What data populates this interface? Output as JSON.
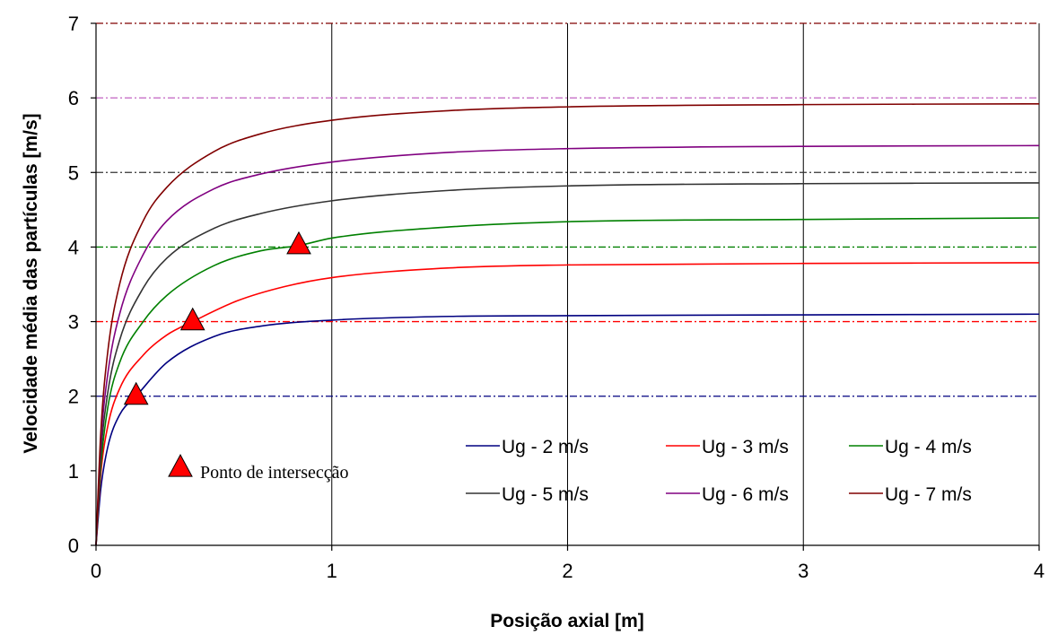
{
  "chart_data": {
    "type": "line",
    "xlabel": "Posição axial [m]",
    "ylabel": "Velocidade média das partículas [m/s]",
    "xlim": [
      0,
      4
    ],
    "ylim": [
      0,
      7
    ],
    "xticks": [
      0,
      1,
      2,
      3,
      4
    ],
    "yticks": [
      0,
      1,
      2,
      3,
      4,
      5,
      6,
      7
    ],
    "grid": "vertical lines at x ticks",
    "series": [
      {
        "name": "Ug - 2 m/s",
        "color": "#000080",
        "x": [
          0,
          0.02,
          0.05,
          0.1,
          0.17,
          0.3,
          0.5,
          0.7,
          1.0,
          1.5,
          2.0,
          3.0,
          4.0
        ],
        "y": [
          0,
          0.75,
          1.32,
          1.75,
          2.0,
          2.45,
          2.8,
          2.94,
          3.02,
          3.07,
          3.08,
          3.09,
          3.1
        ]
      },
      {
        "name": "Ug - 3 m/s",
        "color": "#ff0000",
        "x": [
          0,
          0.02,
          0.05,
          0.1,
          0.2,
          0.3,
          0.41,
          0.6,
          0.8,
          1.0,
          1.5,
          2.0,
          3.0,
          4.0
        ],
        "y": [
          0,
          0.95,
          1.6,
          2.1,
          2.55,
          2.82,
          3.0,
          3.28,
          3.47,
          3.59,
          3.72,
          3.76,
          3.78,
          3.79
        ]
      },
      {
        "name": "Ug - 4 m/s",
        "color": "#008000",
        "x": [
          0,
          0.02,
          0.05,
          0.1,
          0.2,
          0.3,
          0.5,
          0.7,
          0.86,
          1.0,
          1.5,
          2.0,
          3.0,
          4.0
        ],
        "y": [
          0,
          1.05,
          1.85,
          2.45,
          3.0,
          3.35,
          3.75,
          3.95,
          4.02,
          4.12,
          4.27,
          4.34,
          4.37,
          4.39
        ]
      },
      {
        "name": "Ug - 5 m/s",
        "color": "#333333",
        "x": [
          0,
          0.02,
          0.05,
          0.1,
          0.2,
          0.3,
          0.5,
          0.7,
          1.0,
          1.5,
          2.0,
          3.0,
          4.0
        ],
        "y": [
          0,
          1.2,
          2.05,
          2.75,
          3.45,
          3.85,
          4.25,
          4.45,
          4.62,
          4.76,
          4.82,
          4.85,
          4.86
        ]
      },
      {
        "name": "Ug - 6 m/s",
        "color": "#800080",
        "x": [
          0,
          0.02,
          0.05,
          0.1,
          0.2,
          0.3,
          0.5,
          0.7,
          1.0,
          1.5,
          2.0,
          3.0,
          4.0
        ],
        "y": [
          0,
          1.35,
          2.3,
          3.1,
          3.9,
          4.35,
          4.78,
          4.98,
          5.14,
          5.27,
          5.32,
          5.35,
          5.36
        ]
      },
      {
        "name": "Ug - 7 m/s",
        "color": "#800000",
        "x": [
          0,
          0.02,
          0.05,
          0.1,
          0.2,
          0.3,
          0.5,
          0.7,
          1.0,
          1.5,
          2.0,
          3.0,
          4.0
        ],
        "y": [
          0,
          1.5,
          2.6,
          3.5,
          4.35,
          4.8,
          5.28,
          5.52,
          5.7,
          5.83,
          5.88,
          5.91,
          5.92
        ]
      }
    ],
    "reference_lines": [
      {
        "y": 2,
        "color": "#000080",
        "style": "dash-dot"
      },
      {
        "y": 3,
        "color": "#ff0000",
        "style": "dash-dot"
      },
      {
        "y": 4,
        "color": "#008000",
        "style": "dash-dot"
      },
      {
        "y": 5,
        "color": "#333333",
        "style": "dash-dot"
      },
      {
        "y": 6,
        "color": "#c060c0",
        "style": "dash-dot"
      },
      {
        "y": 7,
        "color": "#800000",
        "style": "dash-dot"
      }
    ],
    "markers": [
      {
        "x": 0.17,
        "y": 2.0
      },
      {
        "x": 0.41,
        "y": 3.0
      },
      {
        "x": 0.86,
        "y": 4.02
      }
    ],
    "marker_legend": {
      "label": "Ponto de intersecção",
      "color": "#ff0000"
    },
    "legend": {
      "placement": "bottom-right",
      "columns": 3
    }
  }
}
